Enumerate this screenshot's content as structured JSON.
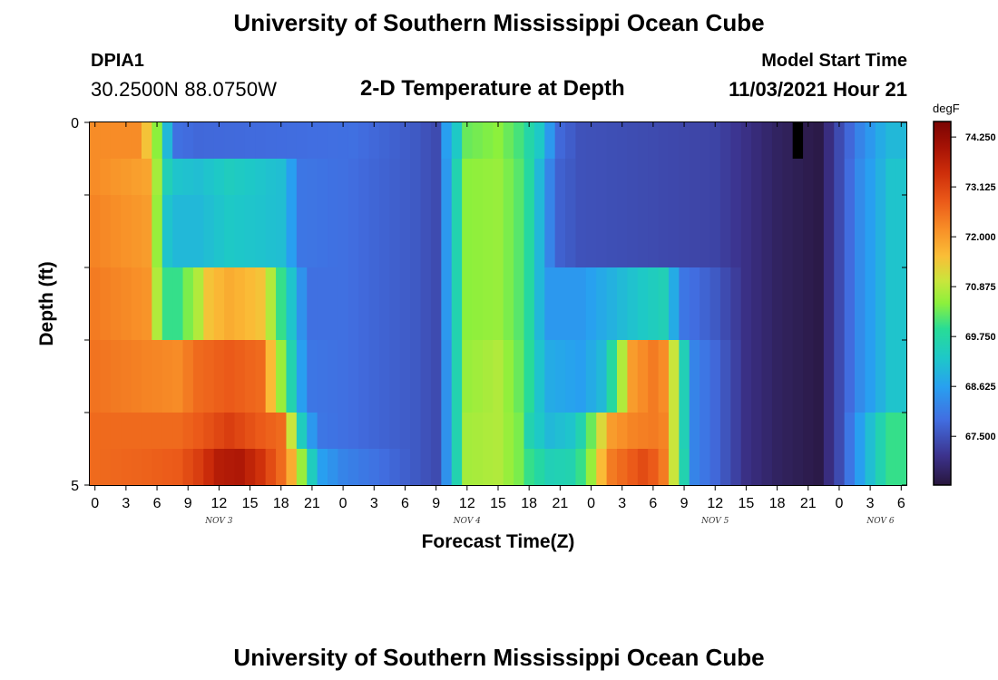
{
  "header": {
    "title": "University of Southern Mississippi Ocean Cube",
    "station_id": "DPIA1",
    "station_coords": "30.2500N  88.0750W",
    "subtitle": "2-D Temperature at Depth",
    "start_label": "Model Start Time",
    "start_value": "11/03/2021 Hour 21"
  },
  "footer": {
    "title": "University of Southern Mississippi Ocean Cube"
  },
  "chart_data": {
    "type": "heatmap",
    "title": "2-D Temperature at Depth",
    "xlabel": "Forecast Time(Z)",
    "ylabel": "Depth (ft)",
    "x_tick_labels": [
      "0",
      "3",
      "6",
      "9",
      "12",
      "15",
      "18",
      "21",
      "0",
      "3",
      "6",
      "9",
      "12",
      "15",
      "18",
      "21",
      "0",
      "3",
      "6",
      "9",
      "12",
      "15",
      "18",
      "21",
      "0",
      "3",
      "6"
    ],
    "day_labels": [
      "NOV 3",
      "NOV 4",
      "NOV 5",
      "NOV 6"
    ],
    "y_tick_labels": [
      "0",
      "5"
    ],
    "ylim": [
      0,
      5
    ],
    "colorbar": {
      "unit": "degF",
      "labels": [
        "74.250",
        "73.125",
        "72.000",
        "70.875",
        "69.750",
        "68.625",
        "67.500"
      ],
      "range": [
        66.4,
        74.6
      ]
    },
    "hours": 78,
    "depth_rows": [
      {
        "depth_band": "0.0-0.5",
        "keyframes": [
          [
            0,
            72.2
          ],
          [
            4,
            72.2
          ],
          [
            5,
            71.5
          ],
          [
            6,
            70.5
          ],
          [
            7,
            69.0
          ],
          [
            8,
            67.9
          ],
          [
            10,
            67.8
          ],
          [
            25,
            67.9
          ],
          [
            31,
            67.6
          ],
          [
            33,
            67.4
          ],
          [
            34,
            68.6
          ],
          [
            35,
            69.3
          ],
          [
            36,
            70.3
          ],
          [
            39,
            70.5
          ],
          [
            41,
            70.1
          ],
          [
            43,
            69.3
          ],
          [
            44,
            68.5
          ],
          [
            45,
            67.8
          ],
          [
            47,
            67.5
          ],
          [
            60,
            67.3
          ],
          [
            63,
            67.0
          ],
          [
            66,
            66.7
          ],
          [
            68,
            66.6
          ],
          [
            69,
            66.55
          ],
          [
            70,
            66.5
          ],
          [
            72,
            67.4
          ],
          [
            74,
            68.2
          ],
          [
            76,
            68.8
          ],
          [
            77,
            69.0
          ]
        ]
      },
      {
        "depth_band": "0.5-1.0",
        "keyframes": [
          [
            0,
            72.2
          ],
          [
            5,
            71.9
          ],
          [
            7,
            69.5
          ],
          [
            8,
            69.2
          ],
          [
            10,
            69.1
          ],
          [
            13,
            69.4
          ],
          [
            18,
            69.1
          ],
          [
            19,
            68.6
          ],
          [
            20,
            68.0
          ],
          [
            24,
            67.9
          ],
          [
            31,
            67.6
          ],
          [
            33,
            67.4
          ],
          [
            34,
            68.5
          ],
          [
            35,
            69.6
          ],
          [
            36,
            70.5
          ],
          [
            39,
            70.6
          ],
          [
            41,
            70.2
          ],
          [
            42,
            69.8
          ],
          [
            43,
            69.0
          ],
          [
            44,
            68.2
          ],
          [
            45,
            67.7
          ],
          [
            47,
            67.5
          ],
          [
            60,
            67.3
          ],
          [
            63,
            67.0
          ],
          [
            66,
            66.7
          ],
          [
            68,
            66.6
          ],
          [
            70,
            66.5
          ],
          [
            72,
            67.4
          ],
          [
            74,
            68.3
          ],
          [
            76,
            68.9
          ],
          [
            77,
            69.2
          ]
        ]
      },
      {
        "depth_band": "1.0-2.0",
        "keyframes": [
          [
            0,
            72.3
          ],
          [
            5,
            72.0
          ],
          [
            7,
            69.2
          ],
          [
            8,
            69.0
          ],
          [
            10,
            69.0
          ],
          [
            13,
            69.3
          ],
          [
            18,
            69.1
          ],
          [
            19,
            68.6
          ],
          [
            20,
            68.0
          ],
          [
            24,
            67.9
          ],
          [
            31,
            67.6
          ],
          [
            33,
            67.4
          ],
          [
            34,
            68.5
          ],
          [
            35,
            69.6
          ],
          [
            36,
            70.5
          ],
          [
            39,
            70.6
          ],
          [
            41,
            70.2
          ],
          [
            42,
            69.8
          ],
          [
            43,
            69.0
          ],
          [
            44,
            68.2
          ],
          [
            45,
            67.7
          ],
          [
            47,
            67.5
          ],
          [
            60,
            67.3
          ],
          [
            63,
            67.0
          ],
          [
            66,
            66.7
          ],
          [
            68,
            66.6
          ],
          [
            70,
            66.5
          ],
          [
            72,
            67.4
          ],
          [
            74,
            68.3
          ],
          [
            76,
            68.9
          ],
          [
            77,
            69.2
          ]
        ]
      },
      {
        "depth_band": "2.0-3.0",
        "keyframes": [
          [
            0,
            72.4
          ],
          [
            5,
            72.1
          ],
          [
            6,
            70.8
          ],
          [
            7,
            70.0
          ],
          [
            8,
            70.0
          ],
          [
            10,
            70.8
          ],
          [
            11,
            71.5
          ],
          [
            13,
            71.8
          ],
          [
            16,
            71.5
          ],
          [
            17,
            70.8
          ],
          [
            18,
            70.0
          ],
          [
            19,
            69.2
          ],
          [
            20,
            68.4
          ],
          [
            21,
            67.9
          ],
          [
            24,
            67.9
          ],
          [
            31,
            67.6
          ],
          [
            33,
            67.4
          ],
          [
            34,
            68.5
          ],
          [
            35,
            69.6
          ],
          [
            36,
            70.5
          ],
          [
            39,
            70.6
          ],
          [
            41,
            70.2
          ],
          [
            42,
            69.8
          ],
          [
            43,
            69.0
          ],
          [
            44,
            68.5
          ],
          [
            47,
            68.5
          ],
          [
            50,
            68.9
          ],
          [
            53,
            69.3
          ],
          [
            55,
            69.5
          ],
          [
            56,
            68.8
          ],
          [
            57,
            68.0
          ],
          [
            60,
            67.6
          ],
          [
            63,
            67.0
          ],
          [
            66,
            66.7
          ],
          [
            68,
            66.6
          ],
          [
            70,
            66.5
          ],
          [
            72,
            67.4
          ],
          [
            74,
            68.3
          ],
          [
            76,
            68.9
          ],
          [
            77,
            69.2
          ]
        ]
      },
      {
        "depth_band": "3.0-4.0",
        "keyframes": [
          [
            0,
            72.5
          ],
          [
            5,
            72.3
          ],
          [
            8,
            72.2
          ],
          [
            10,
            72.6
          ],
          [
            13,
            72.8
          ],
          [
            16,
            72.6
          ],
          [
            17,
            71.6
          ],
          [
            18,
            70.6
          ],
          [
            19,
            69.6
          ],
          [
            20,
            68.6
          ],
          [
            21,
            68.0
          ],
          [
            24,
            67.9
          ],
          [
            31,
            67.6
          ],
          [
            33,
            67.4
          ],
          [
            34,
            68.4
          ],
          [
            35,
            69.6
          ],
          [
            36,
            70.6
          ],
          [
            39,
            70.8
          ],
          [
            41,
            70.3
          ],
          [
            42,
            69.9
          ],
          [
            43,
            69.2
          ],
          [
            44,
            68.8
          ],
          [
            47,
            68.6
          ],
          [
            49,
            69.0
          ],
          [
            50,
            69.8
          ],
          [
            51,
            70.8
          ],
          [
            52,
            72.0
          ],
          [
            54,
            72.4
          ],
          [
            55,
            72.2
          ],
          [
            56,
            71.0
          ],
          [
            57,
            69.5
          ],
          [
            58,
            68.2
          ],
          [
            60,
            67.8
          ],
          [
            63,
            67.0
          ],
          [
            66,
            66.7
          ],
          [
            68,
            66.6
          ],
          [
            70,
            66.5
          ],
          [
            72,
            67.4
          ],
          [
            74,
            68.3
          ],
          [
            76,
            68.9
          ],
          [
            77,
            69.2
          ]
        ]
      },
      {
        "depth_band": "4.0-4.5",
        "keyframes": [
          [
            0,
            72.6
          ],
          [
            5,
            72.6
          ],
          [
            8,
            72.6
          ],
          [
            10,
            72.8
          ],
          [
            13,
            73.2
          ],
          [
            16,
            72.8
          ],
          [
            18,
            72.6
          ],
          [
            19,
            71.0
          ],
          [
            20,
            69.4
          ],
          [
            21,
            68.5
          ],
          [
            22,
            68.0
          ],
          [
            24,
            67.9
          ],
          [
            31,
            67.6
          ],
          [
            33,
            67.4
          ],
          [
            34,
            68.4
          ],
          [
            35,
            69.6
          ],
          [
            36,
            70.7
          ],
          [
            39,
            70.8
          ],
          [
            41,
            70.4
          ],
          [
            42,
            69.6
          ],
          [
            44,
            69.0
          ],
          [
            46,
            69.2
          ],
          [
            47,
            69.6
          ],
          [
            48,
            70.3
          ],
          [
            49,
            71.2
          ],
          [
            50,
            72.0
          ],
          [
            52,
            72.3
          ],
          [
            54,
            72.4
          ],
          [
            55,
            72.3
          ],
          [
            56,
            71.0
          ],
          [
            57,
            69.5
          ],
          [
            58,
            68.2
          ],
          [
            60,
            67.8
          ],
          [
            63,
            67.0
          ],
          [
            66,
            66.7
          ],
          [
            68,
            66.6
          ],
          [
            70,
            66.5
          ],
          [
            72,
            67.4
          ],
          [
            74,
            68.6
          ],
          [
            76,
            69.6
          ],
          [
            77,
            70.0
          ]
        ]
      },
      {
        "depth_band": "4.5-5.0",
        "keyframes": [
          [
            0,
            72.6
          ],
          [
            5,
            72.7
          ],
          [
            8,
            72.8
          ],
          [
            10,
            73.2
          ],
          [
            12,
            73.8
          ],
          [
            14,
            73.9
          ],
          [
            16,
            73.4
          ],
          [
            18,
            72.6
          ],
          [
            19,
            71.8
          ],
          [
            20,
            70.6
          ],
          [
            21,
            69.4
          ],
          [
            22,
            68.6
          ],
          [
            24,
            68.2
          ],
          [
            31,
            67.6
          ],
          [
            33,
            67.4
          ],
          [
            34,
            68.4
          ],
          [
            35,
            69.6
          ],
          [
            36,
            70.7
          ],
          [
            39,
            70.8
          ],
          [
            41,
            70.4
          ],
          [
            42,
            70.0
          ],
          [
            44,
            69.5
          ],
          [
            46,
            69.6
          ],
          [
            47,
            70.0
          ],
          [
            48,
            70.6
          ],
          [
            49,
            71.6
          ],
          [
            50,
            72.4
          ],
          [
            52,
            72.8
          ],
          [
            53,
            73.0
          ],
          [
            54,
            72.8
          ],
          [
            55,
            72.4
          ],
          [
            56,
            71.0
          ],
          [
            57,
            69.6
          ],
          [
            58,
            68.2
          ],
          [
            60,
            67.8
          ],
          [
            63,
            67.0
          ],
          [
            66,
            66.7
          ],
          [
            68,
            66.6
          ],
          [
            70,
            66.5
          ],
          [
            72,
            67.4
          ],
          [
            74,
            68.6
          ],
          [
            76,
            69.6
          ],
          [
            77,
            70.0
          ]
        ]
      }
    ],
    "missing_cells": [
      {
        "hour": 68,
        "depth_band": "0.0-0.5"
      }
    ]
  }
}
